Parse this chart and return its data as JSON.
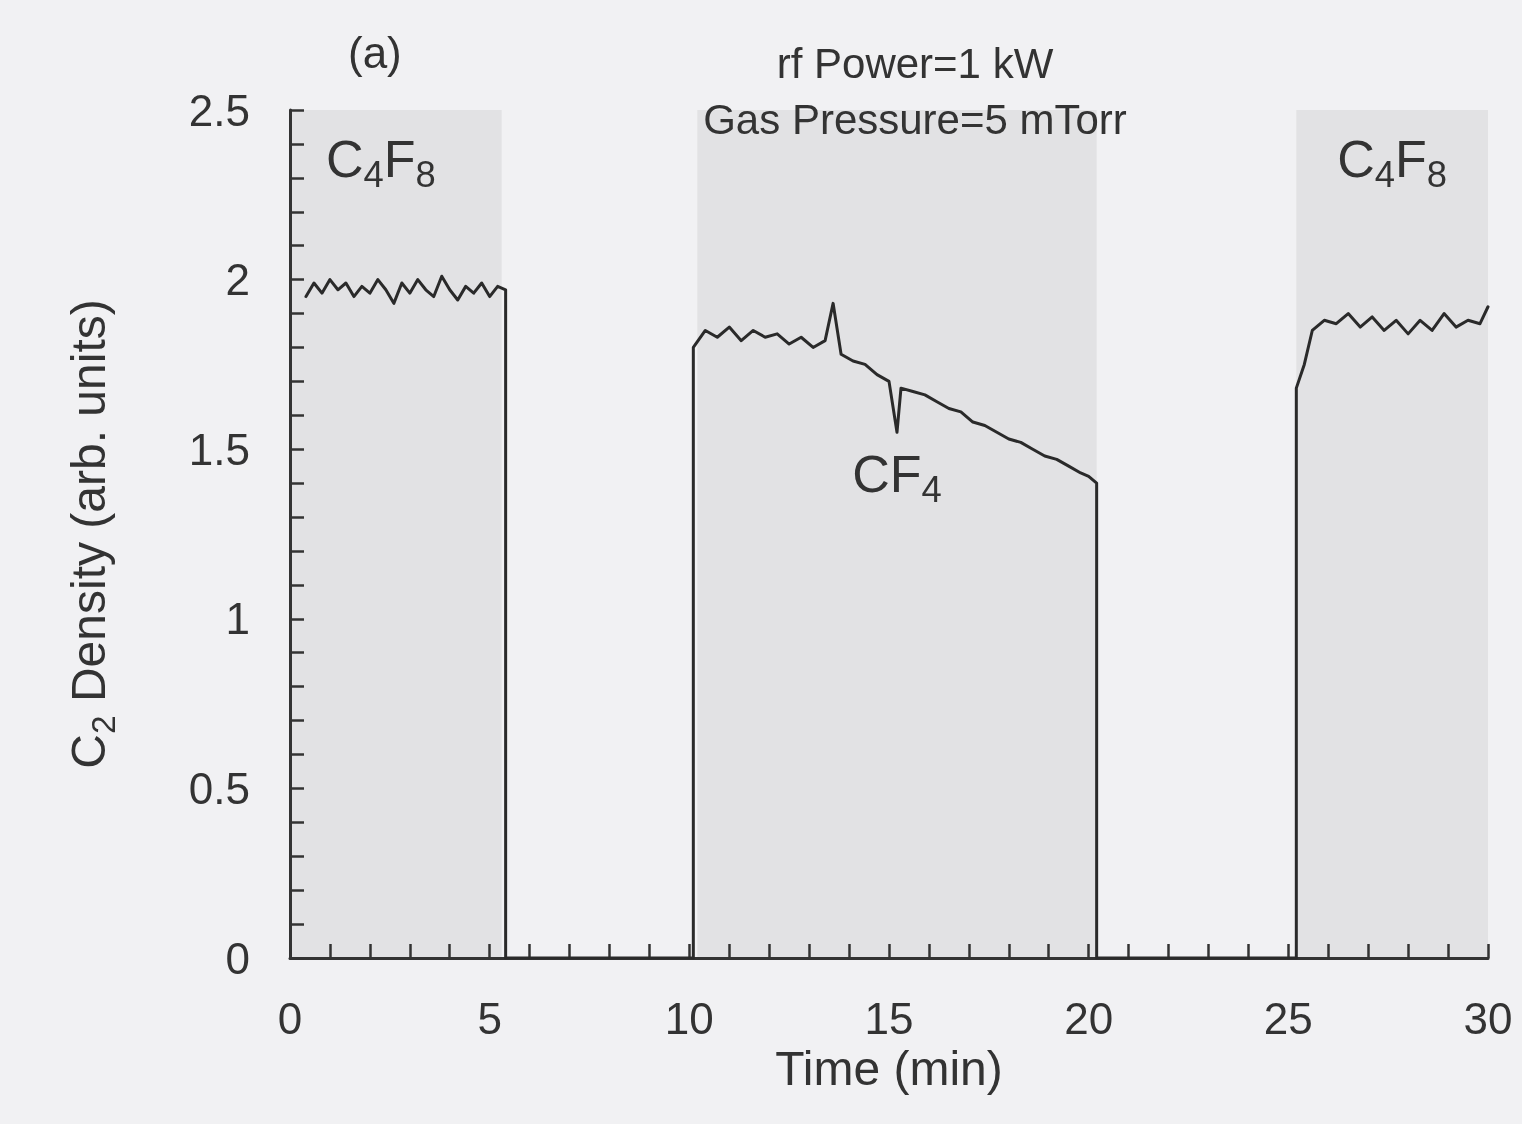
{
  "chart_data": {
    "type": "line",
    "xlabel": "Time (min)",
    "ylabel": "C$_{2}$ Density (arb. units)",
    "annotations": [
      "(a)",
      "rf Power=1 kW",
      "Gas Pressure=5 mTorr"
    ],
    "x": [
      0.4,
      0.6,
      0.8,
      1.0,
      1.2,
      1.4,
      1.6,
      1.8,
      2.0,
      2.2,
      2.4,
      2.6,
      2.8,
      3.0,
      3.2,
      3.4,
      3.6,
      3.8,
      4.0,
      4.2,
      4.4,
      4.6,
      4.8,
      5.0,
      5.2,
      5.4,
      5.4,
      10.1,
      10.1,
      10.4,
      10.7,
      11.0,
      11.3,
      11.6,
      11.9,
      12.2,
      12.5,
      12.8,
      13.1,
      13.4,
      13.6,
      13.8,
      14.1,
      14.4,
      14.7,
      15.0,
      15.2,
      15.3,
      15.6,
      15.9,
      16.2,
      16.5,
      16.8,
      17.1,
      17.4,
      17.7,
      18.0,
      18.3,
      18.6,
      18.9,
      19.2,
      19.5,
      19.8,
      20.0,
      20.2,
      20.2,
      25.2,
      25.2,
      25.4,
      25.6,
      25.9,
      26.2,
      26.5,
      26.8,
      27.1,
      27.4,
      27.7,
      28.0,
      28.3,
      28.6,
      28.9,
      29.2,
      29.5,
      29.8,
      30.0
    ],
    "series": [
      {
        "color": "#2a2a2a",
        "values": [
          1.95,
          1.99,
          1.96,
          2.0,
          1.97,
          1.99,
          1.95,
          1.98,
          1.96,
          2.0,
          1.97,
          1.93,
          1.99,
          1.96,
          2.0,
          1.97,
          1.95,
          2.01,
          1.97,
          1.94,
          1.98,
          1.96,
          1.99,
          1.95,
          1.98,
          1.97,
          0,
          0,
          1.8,
          1.85,
          1.83,
          1.86,
          1.82,
          1.85,
          1.83,
          1.84,
          1.81,
          1.83,
          1.8,
          1.82,
          1.93,
          1.78,
          1.76,
          1.75,
          1.72,
          1.7,
          1.55,
          1.68,
          1.67,
          1.66,
          1.64,
          1.62,
          1.61,
          1.58,
          1.57,
          1.55,
          1.53,
          1.52,
          1.5,
          1.48,
          1.47,
          1.45,
          1.43,
          1.42,
          1.4,
          0,
          0,
          1.68,
          1.75,
          1.85,
          1.88,
          1.87,
          1.9,
          1.86,
          1.89,
          1.85,
          1.88,
          1.84,
          1.88,
          1.85,
          1.9,
          1.86,
          1.88,
          1.87,
          1.92
        ]
      }
    ],
    "xlim": [
      0,
      30
    ],
    "xticks": [
      0,
      {
        "value": 1,
        "label": null
      },
      {
        "value": 2,
        "label": null
      },
      {
        "value": 3,
        "label": null
      },
      {
        "value": 4,
        "label": null
      },
      5,
      {
        "value": 6,
        "label": null
      },
      {
        "value": 7,
        "label": null
      },
      {
        "value": 8,
        "label": null
      },
      {
        "value": 9,
        "label": null
      },
      10,
      {
        "value": 11,
        "label": null
      },
      {
        "value": 12,
        "label": null
      },
      {
        "value": 13,
        "label": null
      },
      {
        "value": 14,
        "label": null
      },
      15,
      {
        "value": 16,
        "label": null
      },
      {
        "value": 17,
        "label": null
      },
      {
        "value": 18,
        "label": null
      },
      {
        "value": 19,
        "label": null
      },
      20,
      {
        "value": 21,
        "label": null
      },
      {
        "value": 22,
        "label": null
      },
      {
        "value": 23,
        "label": null
      },
      {
        "value": 24,
        "label": null
      },
      25,
      {
        "value": 26,
        "label": null
      },
      {
        "value": 27,
        "label": null
      },
      {
        "value": 28,
        "label": null
      },
      {
        "value": 29,
        "label": null
      },
      30
    ],
    "ylim": [
      0,
      2.5
    ],
    "yticks": [
      0,
      {
        "value": 0.1,
        "label": null
      },
      {
        "value": 0.2,
        "label": null
      },
      {
        "value": 0.3,
        "label": null
      },
      {
        "value": 0.4,
        "label": null
      },
      0.5,
      {
        "value": 0.6,
        "label": null
      },
      {
        "value": 0.7,
        "label": null
      },
      {
        "value": 0.8,
        "label": null
      },
      {
        "value": 0.9,
        "label": null
      },
      1,
      {
        "value": 1.1,
        "label": null
      },
      {
        "value": 1.2,
        "label": null
      },
      {
        "value": 1.3,
        "label": null
      },
      {
        "value": 1.4,
        "label": null
      },
      1.5,
      {
        "value": 1.6,
        "label": null
      },
      {
        "value": 1.7,
        "label": null
      },
      {
        "value": 1.8,
        "label": null
      },
      {
        "value": 1.9,
        "label": null
      },
      2,
      {
        "value": 2.1,
        "label": null
      },
      {
        "value": 2.2,
        "label": null
      },
      {
        "value": 2.3,
        "label": null
      },
      {
        "value": 2.4,
        "label": null
      },
      2.5
    ],
    "bands": [
      {
        "axis": "x",
        "from": 0,
        "to": 5.3,
        "label": "C$_{4}$F$_{8}$",
        "color": "#e2e2e4"
      },
      {
        "axis": "x",
        "from": 10.2,
        "to": 20.2,
        "label": "CF$_{4}$",
        "color": "#e2e2e4"
      },
      {
        "axis": "x",
        "from": 25.2,
        "to": 30,
        "label": "C$_{4}$F$_{8}$",
        "color": "#e2e2e4"
      }
    ],
    "grid": false,
    "marker": "none",
    "line_style": "solid"
  }
}
